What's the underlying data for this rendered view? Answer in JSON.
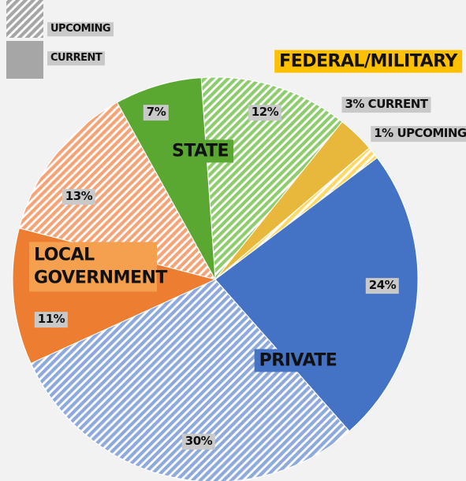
{
  "chart_data": {
    "type": "pie",
    "legend": [
      {
        "name": "UPCOMING",
        "hatched": true
      },
      {
        "name": "CURRENT",
        "hatched": false
      }
    ],
    "legend_color": "#a6a6a6",
    "groups": [
      {
        "name": "STATE",
        "color": "#5aa832"
      },
      {
        "name": "FEDERAL/MILITARY",
        "color": "#ffc000"
      },
      {
        "name": "PRIVATE",
        "color": "#4472c4"
      },
      {
        "name": "LOCAL GOVERNMENT",
        "color": "#f4a04f"
      }
    ],
    "values": [
      12,
      3,
      1,
      24,
      30,
      11,
      13,
      7
    ],
    "value_labels": [
      "12%",
      "3% CURRENT",
      "1% UPCOMING",
      "24%",
      "30%",
      "11%",
      "13%",
      "7%"
    ],
    "colors": [
      "#8fcc6e",
      "#e8b83c",
      "#ffd966",
      "#4472c4",
      "#8eaadc",
      "#ed7d31",
      "#f4a477",
      "#5aa832"
    ],
    "hatched": [
      true,
      false,
      true,
      false,
      true,
      false,
      true,
      false
    ]
  }
}
